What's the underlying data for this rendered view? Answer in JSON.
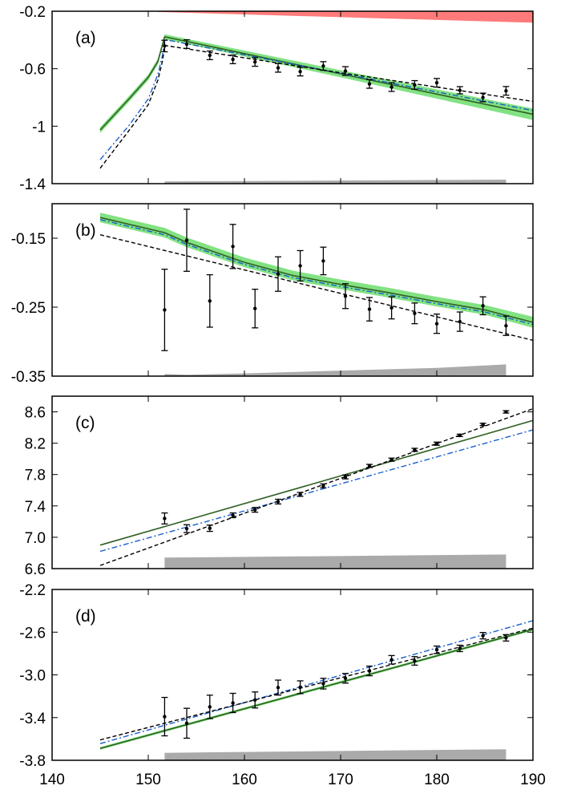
{
  "chart_data": [
    {
      "type": "line",
      "panel_label": "(a)",
      "xlim": [
        140,
        190
      ],
      "ylim": [
        -1.4,
        -0.2
      ],
      "y_ticks": [
        "-0.2",
        "-0.6",
        "-1",
        "-1.4"
      ],
      "y_tick_values": [
        -0.2,
        -0.6,
        -1.0,
        -1.4
      ],
      "points": {
        "x": [
          151.7,
          154.0,
          156.4,
          158.8,
          161.1,
          163.5,
          165.8,
          168.2,
          170.5,
          173.0,
          175.3,
          177.7,
          180.0,
          182.4,
          184.8,
          187.2
        ],
        "y": [
          -0.442,
          -0.429,
          -0.507,
          -0.535,
          -0.553,
          -0.594,
          -0.62,
          -0.581,
          -0.616,
          -0.706,
          -0.728,
          -0.713,
          -0.698,
          -0.75,
          -0.8,
          -0.754
        ],
        "err": [
          0.04,
          0.03,
          0.03,
          0.03,
          0.03,
          0.03,
          0.03,
          0.03,
          0.03,
          0.03,
          0.03,
          0.03,
          0.03,
          0.025,
          0.03,
          0.03
        ]
      },
      "green_band": {
        "x": [
          145,
          148,
          150,
          151,
          151.7,
          170,
          190
        ],
        "lower": [
          -1.047,
          -0.83,
          -0.68,
          -0.57,
          -0.395,
          -0.66,
          -0.957
        ],
        "upper": [
          -1.007,
          -0.79,
          -0.64,
          -0.53,
          -0.36,
          -0.61,
          -0.877
        ]
      },
      "green_line": {
        "x": [
          145,
          148,
          150,
          151,
          151.7,
          170,
          190
        ],
        "y": [
          -1.027,
          -0.81,
          -0.66,
          -0.55,
          -0.378,
          -0.636,
          -0.917
        ]
      },
      "blue_line": {
        "x": [
          145,
          148,
          150,
          151,
          151.5,
          151.7,
          170,
          190
        ],
        "y": [
          -1.233,
          -0.995,
          -0.81,
          -0.64,
          -0.5,
          -0.397,
          -0.632,
          -0.891
        ]
      },
      "black_dashed": {
        "x": [
          145,
          148,
          150,
          151,
          151.5,
          151.7,
          170,
          190
        ],
        "y": [
          -1.293,
          -1.03,
          -0.85,
          -0.68,
          -0.54,
          -0.438,
          -0.628,
          -0.828
        ]
      },
      "gray_band": {
        "x": [
          151.7,
          187.2
        ],
        "top": [
          -1.385,
          -1.372
        ]
      },
      "red_band": {
        "x": [
          151,
          190
        ],
        "lower": [
          -0.205,
          -0.28
        ],
        "upper": [
          -0.2,
          -0.2
        ]
      }
    },
    {
      "type": "line",
      "panel_label": "(b)",
      "xlim": [
        140,
        190
      ],
      "ylim": [
        -0.35,
        -0.1
      ],
      "y_ticks": [
        "-0.15",
        "-0.25",
        "-0.35"
      ],
      "y_tick_values": [
        -0.15,
        -0.25,
        -0.35
      ],
      "points": {
        "x": [
          151.7,
          154.0,
          156.4,
          158.8,
          161.1,
          163.5,
          165.8,
          168.2,
          170.5,
          173.0,
          175.3,
          177.7,
          180.0,
          182.4,
          184.8,
          187.2
        ],
        "y": [
          -0.254,
          -0.153,
          -0.241,
          -0.162,
          -0.252,
          -0.202,
          -0.19,
          -0.183,
          -0.234,
          -0.253,
          -0.251,
          -0.259,
          -0.274,
          -0.271,
          -0.248,
          -0.277
        ],
        "err": [
          0.059,
          0.045,
          0.038,
          0.032,
          0.028,
          0.025,
          0.022,
          0.02,
          0.018,
          0.017,
          0.016,
          0.015,
          0.014,
          0.014,
          0.013,
          0.014
        ]
      },
      "green_band": {
        "x": [
          145,
          151.7,
          154,
          160,
          165,
          170,
          175,
          180,
          185,
          190
        ],
        "lower": [
          -0.127,
          -0.149,
          -0.163,
          -0.192,
          -0.211,
          -0.224,
          -0.236,
          -0.249,
          -0.261,
          -0.28
        ],
        "upper": [
          -0.113,
          -0.135,
          -0.149,
          -0.178,
          -0.197,
          -0.21,
          -0.222,
          -0.235,
          -0.247,
          -0.264
        ]
      },
      "green_line": {
        "x": [
          145,
          151.7,
          154,
          160,
          165,
          170,
          175,
          180,
          185,
          190
        ],
        "y": [
          -0.12,
          -0.142,
          -0.156,
          -0.185,
          -0.204,
          -0.217,
          -0.229,
          -0.242,
          -0.254,
          -0.272
        ]
      },
      "blue_line": {
        "x": [
          145,
          151.7,
          154,
          160,
          165,
          170,
          175,
          180,
          185,
          190
        ],
        "y": [
          -0.123,
          -0.145,
          -0.159,
          -0.188,
          -0.207,
          -0.22,
          -0.232,
          -0.245,
          -0.257,
          -0.275
        ]
      },
      "black_dashed": {
        "x": [
          145,
          190
        ],
        "y": [
          -0.145,
          -0.298
        ]
      },
      "gray_band": {
        "x": [
          151.7,
          154,
          160,
          170,
          180,
          187.2
        ],
        "top": [
          -0.347,
          -0.348,
          -0.346,
          -0.342,
          -0.338,
          -0.333
        ]
      }
    },
    {
      "type": "line",
      "panel_label": "(c)",
      "xlim": [
        140,
        190
      ],
      "ylim": [
        6.6,
        8.8
      ],
      "y_ticks": [
        "8.6",
        "8.2",
        "7.8",
        "7.4",
        "7.0",
        "6.6"
      ],
      "y_tick_values": [
        8.6,
        8.2,
        7.8,
        7.4,
        7.0,
        6.6
      ],
      "points": {
        "x": [
          151.7,
          154.0,
          156.4,
          158.8,
          161.1,
          163.5,
          165.8,
          168.2,
          170.5,
          173.0,
          175.3,
          177.7,
          180.0,
          182.4,
          184.8,
          187.2
        ],
        "y": [
          7.24,
          7.11,
          7.115,
          7.28,
          7.35,
          7.455,
          7.547,
          7.656,
          7.77,
          7.91,
          7.99,
          8.115,
          8.194,
          8.3,
          8.44,
          8.6
        ],
        "err": [
          0.07,
          0.05,
          0.04,
          0.03,
          0.03,
          0.03,
          0.025,
          0.025,
          0.025,
          0.02,
          0.02,
          0.02,
          0.02,
          0.015,
          0.015,
          0.015
        ]
      },
      "green_line": {
        "x": [
          145,
          190
        ],
        "y": [
          6.9,
          8.49
        ]
      },
      "blue_line": {
        "x": [
          145,
          190
        ],
        "y": [
          6.82,
          8.37
        ]
      },
      "black_dashed": {
        "x": [
          145,
          190
        ],
        "y": [
          6.64,
          8.64
        ]
      },
      "gray_band": {
        "x": [
          151.7,
          187.2
        ],
        "top": [
          6.74,
          6.78
        ]
      }
    },
    {
      "type": "line",
      "panel_label": "(d)",
      "xlim": [
        140,
        190
      ],
      "ylim": [
        -3.8,
        -2.2
      ],
      "y_ticks": [
        "-2.2",
        "-2.6",
        "-3.0",
        "-3.4",
        "-3.8"
      ],
      "y_tick_values": [
        -2.2,
        -2.6,
        -3.0,
        -3.4,
        -3.8
      ],
      "x_ticks": [
        "140",
        "150",
        "160",
        "170",
        "180",
        "190"
      ],
      "x_tick_values": [
        140,
        150,
        160,
        170,
        180,
        190
      ],
      "points": {
        "x": [
          151.7,
          154.0,
          156.4,
          158.8,
          161.1,
          163.5,
          165.8,
          168.2,
          170.5,
          173.0,
          175.3,
          177.7,
          180.0,
          182.4,
          184.8,
          187.2
        ],
        "y": [
          -3.391,
          -3.453,
          -3.3,
          -3.263,
          -3.235,
          -3.119,
          -3.116,
          -3.082,
          -3.032,
          -2.963,
          -2.859,
          -2.869,
          -2.765,
          -2.752,
          -2.633,
          -2.653
        ],
        "err": [
          0.18,
          0.14,
          0.11,
          0.09,
          0.075,
          0.07,
          0.06,
          0.05,
          0.045,
          0.045,
          0.04,
          0.04,
          0.035,
          0.03,
          0.03,
          0.03
        ]
      },
      "green_band": {
        "x": [
          145,
          190
        ],
        "lower": [
          -3.701,
          -2.586
        ],
        "upper": [
          -3.677,
          -2.562
        ]
      },
      "green_line": {
        "x": [
          145,
          190
        ],
        "y": [
          -3.689,
          -2.574
        ]
      },
      "blue_line": {
        "x": [
          145,
          190
        ],
        "y": [
          -3.644,
          -2.492
        ]
      },
      "black_dashed": {
        "x": [
          145,
          190
        ],
        "y": [
          -3.609,
          -2.562
        ]
      },
      "gray_band": {
        "x": [
          151.7,
          187.2
        ],
        "top": [
          -3.73,
          -3.696
        ]
      }
    }
  ],
  "colors": {
    "green_band": "#82e282",
    "green_line": "#2f5f22",
    "blue_line": "#1a5fd0",
    "black_dashed": "#000000",
    "gray_band": "#aaaaaa",
    "red_band": "#ff7b7b",
    "points": "#000000"
  }
}
